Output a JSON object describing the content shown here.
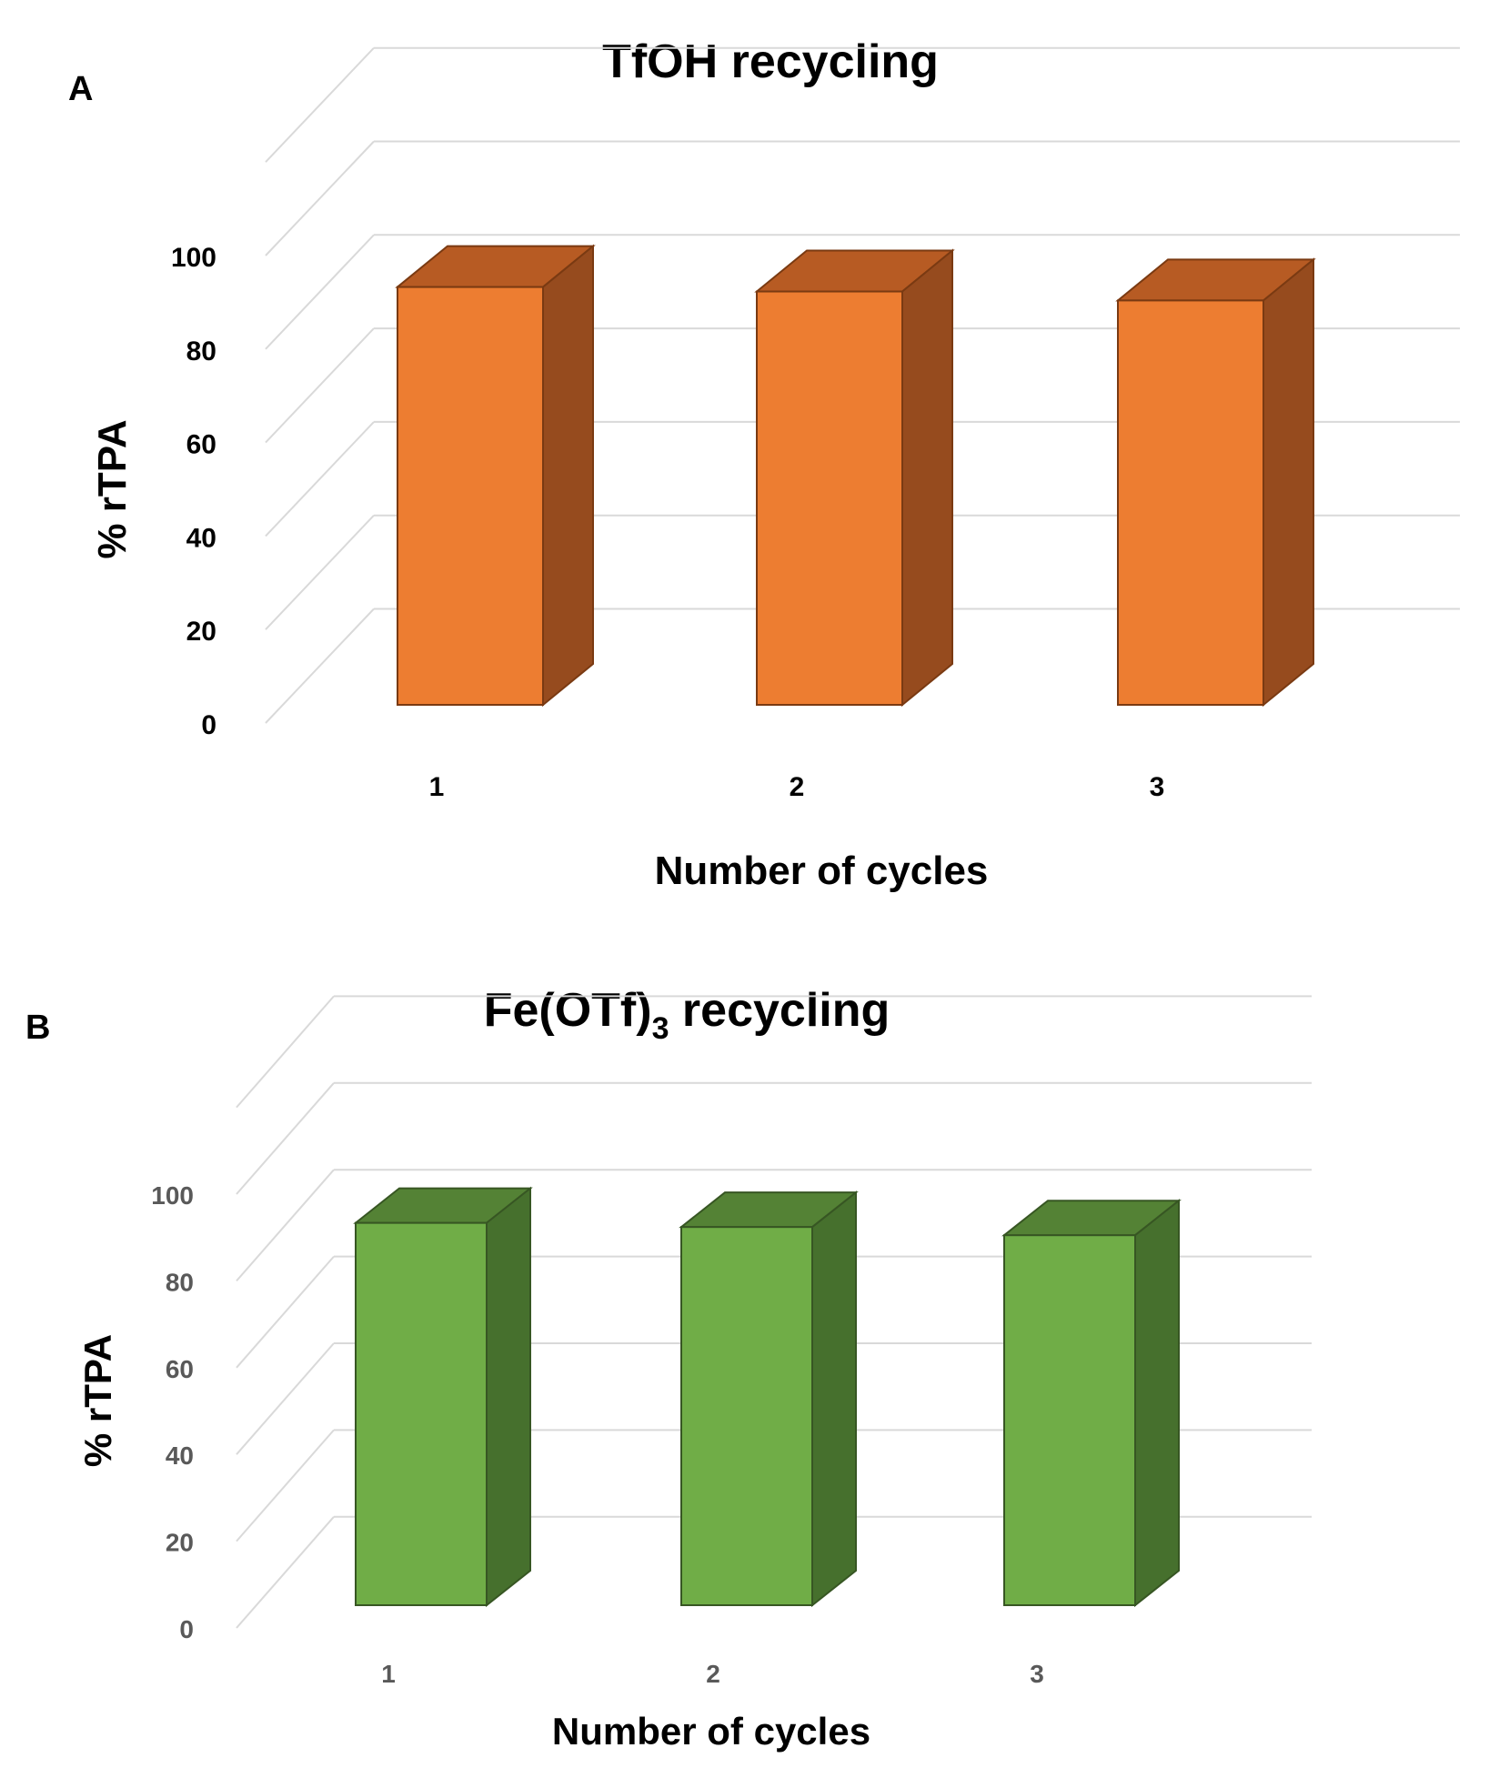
{
  "chart_data": [
    {
      "type": "bar",
      "panel_label": "A",
      "title": "TfOH recycling",
      "xlabel": "Number of cycles",
      "ylabel": "% rTPA",
      "categories": [
        "1",
        "2",
        "3"
      ],
      "values": [
        93,
        92,
        90
      ],
      "ylim": [
        0,
        100
      ],
      "yticks": [
        "0",
        "20",
        "40",
        "60",
        "80",
        "100"
      ],
      "grid": true,
      "legend": "none",
      "colors": {
        "front": "#ED7D31",
        "top": "#B75B23",
        "side": "#964B1E",
        "edge": "#7A3A12"
      }
    },
    {
      "type": "bar",
      "panel_label": "B",
      "title_main": "Fe(OTf)",
      "title_subscript": "3",
      "title_rest": " recycling",
      "xlabel": "Number of cycles",
      "ylabel": "% rTPA",
      "categories": [
        "1",
        "2",
        "3"
      ],
      "values": [
        93,
        92,
        90
      ],
      "ylim": [
        0,
        100
      ],
      "yticks": [
        "0",
        "20",
        "40",
        "60",
        "80",
        "100"
      ],
      "grid": true,
      "legend": "none",
      "colors": {
        "front": "#70AD47",
        "top": "#548235",
        "side": "#46702D",
        "edge": "#375623"
      }
    }
  ]
}
